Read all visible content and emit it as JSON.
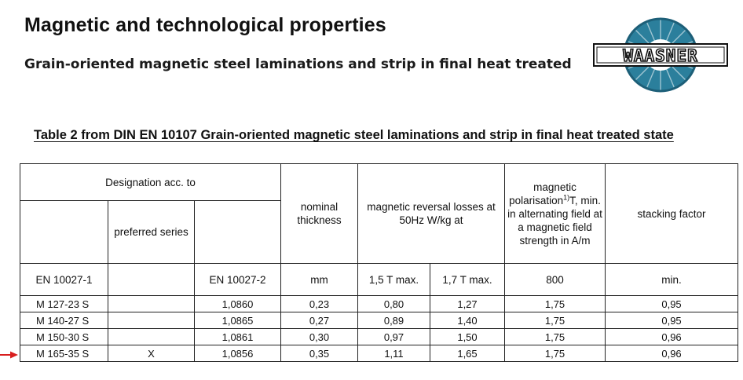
{
  "page": {
    "title": "Magnetic and technological properties",
    "subtitle": "Grain-oriented magnetic steel laminations and strip in final heat treated"
  },
  "logo": {
    "text": "WAASNER",
    "ring_color": "#2b7f9c",
    "ring_dark": "#1d5f78"
  },
  "table": {
    "caption": "Table 2 from DIN EN 10107 Grain-oriented magnetic steel laminations and strip in final heat treated state",
    "headers": {
      "designation": "Designation acc. to",
      "preferred_series": "preferred series",
      "nominal_thickness": "nominal thickness",
      "reversal_losses": "magnetic reversal losses at 50Hz W/kg at",
      "polarisation_pre": "magnetic polarisation",
      "polarisation_sup": "1)",
      "polarisation_post": "T, min. in alternating field at a magnetic field strength in A/m",
      "stacking_factor": "stacking factor"
    },
    "units": {
      "en_10027_1": "EN 10027-1",
      "en_10027_2": "EN 10027-2",
      "thickness": "mm",
      "loss_1_5": "1,5 T max.",
      "loss_1_7": "1,7 T max.",
      "field_strength": "800",
      "stacking": "min."
    },
    "rows": [
      {
        "en1": "M 127-23 S",
        "preferred": "",
        "en2": "1,0860",
        "thickness": "0,23",
        "loss15": "0,80",
        "loss17": "1,27",
        "polarisation": "1,75",
        "stacking": "0,95"
      },
      {
        "en1": "M 140-27 S",
        "preferred": "",
        "en2": "1,0865",
        "thickness": "0,27",
        "loss15": "0,89",
        "loss17": "1,40",
        "polarisation": "1,75",
        "stacking": "0,95"
      },
      {
        "en1": "M 150-30 S",
        "preferred": "",
        "en2": "1,0861",
        "thickness": "0,30",
        "loss15": "0,97",
        "loss17": "1,50",
        "polarisation": "1,75",
        "stacking": "0,96"
      },
      {
        "en1": "M 165-35 S",
        "preferred": "X",
        "en2": "1,0856",
        "thickness": "0,35",
        "loss15": "1,11",
        "loss17": "1,65",
        "polarisation": "1,75",
        "stacking": "0,96"
      }
    ]
  },
  "marker": {
    "color": "#d81e1e",
    "points_to_row": "M 165-35 S"
  }
}
